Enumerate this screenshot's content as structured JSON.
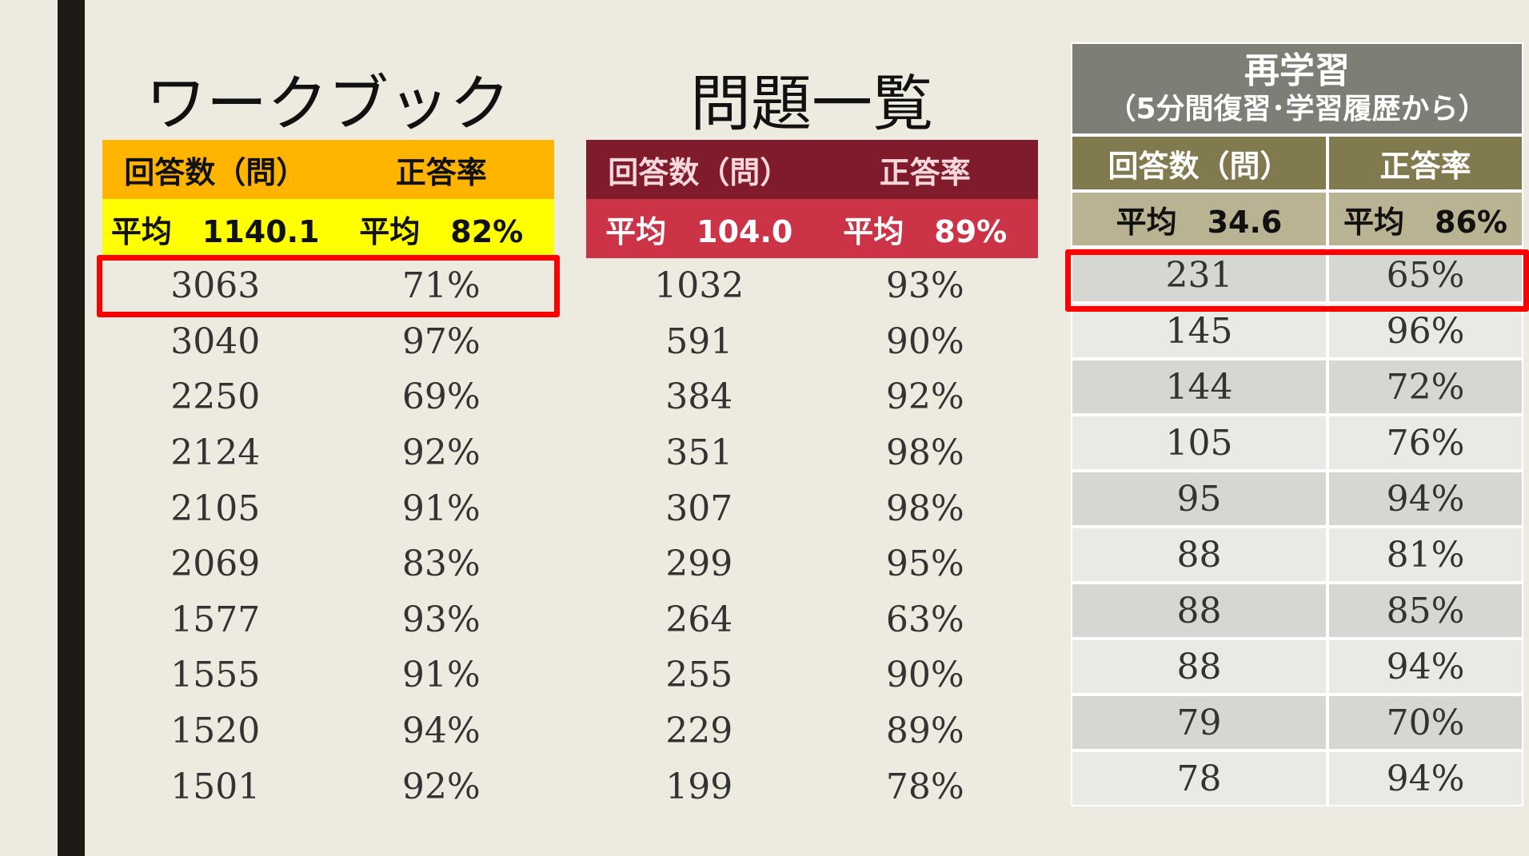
{
  "workbook": {
    "title": "ワークブック",
    "header": {
      "count": "回答数（問）",
      "rate": "正答率"
    },
    "average": {
      "count": "平均　1140.1",
      "rate": "平均　82%"
    },
    "rows": [
      {
        "count": "3063",
        "rate": "71%"
      },
      {
        "count": "3040",
        "rate": "97%"
      },
      {
        "count": "2250",
        "rate": "69%"
      },
      {
        "count": "2124",
        "rate": "92%"
      },
      {
        "count": "2105",
        "rate": "91%"
      },
      {
        "count": "2069",
        "rate": "83%"
      },
      {
        "count": "1577",
        "rate": "93%"
      },
      {
        "count": "1555",
        "rate": "91%"
      },
      {
        "count": "1520",
        "rate": "94%"
      },
      {
        "count": "1501",
        "rate": "92%"
      }
    ]
  },
  "problems": {
    "title": "問題一覧",
    "header": {
      "count": "回答数（問）",
      "rate": "正答率"
    },
    "average": {
      "count": "平均　104.0",
      "rate": "平均　89%"
    },
    "rows": [
      {
        "count": "1032",
        "rate": "93%"
      },
      {
        "count": "591",
        "rate": "90%"
      },
      {
        "count": "384",
        "rate": "92%"
      },
      {
        "count": "351",
        "rate": "98%"
      },
      {
        "count": "307",
        "rate": "98%"
      },
      {
        "count": "299",
        "rate": "95%"
      },
      {
        "count": "264",
        "rate": "63%"
      },
      {
        "count": "255",
        "rate": "90%"
      },
      {
        "count": "229",
        "rate": "89%"
      },
      {
        "count": "199",
        "rate": "78%"
      }
    ]
  },
  "relearning": {
    "title": "再学習",
    "subtitle": "（5分間復習･学習履歴から）",
    "header": {
      "count": "回答数（問）",
      "rate": "正答率"
    },
    "average": {
      "count": "平均　34.6",
      "rate": "平均　86%"
    },
    "rows": [
      {
        "count": "231",
        "rate": "65%"
      },
      {
        "count": "145",
        "rate": "96%"
      },
      {
        "count": "144",
        "rate": "72%"
      },
      {
        "count": "105",
        "rate": "76%"
      },
      {
        "count": "95",
        "rate": "94%"
      },
      {
        "count": "88",
        "rate": "81%"
      },
      {
        "count": "88",
        "rate": "85%"
      },
      {
        "count": "88",
        "rate": "94%"
      },
      {
        "count": "79",
        "rate": "70%"
      },
      {
        "count": "78",
        "rate": "94%"
      }
    ]
  },
  "colors": {
    "highlight": "#ff0000",
    "workbook_header": "#ffb400",
    "workbook_average": "#ffff00",
    "problems_header": "#7f1b2b",
    "problems_average": "#cc3347",
    "relearning_title": "#7e7e77",
    "relearning_header": "#827a4f",
    "relearning_average": "#b9b393"
  }
}
